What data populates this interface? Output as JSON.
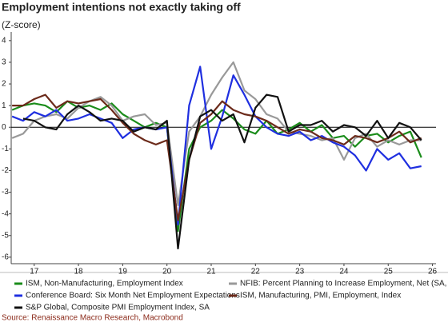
{
  "chart_data": {
    "type": "line",
    "title": "Employment intentions not exactly taking off",
    "subtitle": "(Z-score)",
    "source": "Source: Renaissance Macro Research, Macrobond",
    "x": [
      2016.5,
      2016.75,
      2017,
      2017.25,
      2017.5,
      2017.75,
      2018,
      2018.25,
      2018.5,
      2018.75,
      2019,
      2019.25,
      2019.5,
      2019.75,
      2020,
      2020.25,
      2020.5,
      2020.75,
      2021,
      2021.25,
      2021.5,
      2021.75,
      2022,
      2022.25,
      2022.5,
      2022.75,
      2023,
      2023.25,
      2023.5,
      2023.75,
      2024,
      2024.25,
      2024.5,
      2024.75,
      2025,
      2025.25,
      2025.5,
      2025.75
    ],
    "series": [
      {
        "name": "ISM, Non-Manufacturing, Employment Index",
        "color": "#1a8c1a",
        "values": [
          0.8,
          1.0,
          1.1,
          1.0,
          0.7,
          1.2,
          0.9,
          1.0,
          0.8,
          1.1,
          0.6,
          0.3,
          0.0,
          0.2,
          0.0,
          -4.8,
          -1.0,
          0.0,
          0.3,
          0.8,
          0.4,
          -0.1,
          -0.3,
          0.3,
          -0.3,
          -0.1,
          0.2,
          -0.2,
          0.1,
          -0.5,
          -0.4,
          -0.9,
          -0.4,
          -0.3,
          -0.7,
          -0.4,
          -0.2,
          -1.4
        ]
      },
      {
        "name": "NFIB: Percent Planning to Increase Employment, Net (SA, %)",
        "color": "#999999",
        "values": [
          -0.5,
          -0.3,
          0.3,
          0.5,
          0.6,
          0.4,
          0.9,
          1.2,
          1.4,
          1.0,
          0.3,
          0.5,
          0.6,
          0.1,
          0.2,
          -3.6,
          -0.2,
          0.5,
          1.5,
          2.3,
          3.0,
          1.7,
          1.3,
          0.6,
          0.4,
          -0.2,
          -0.3,
          -0.4,
          -0.6,
          -0.5,
          -1.5,
          -0.5,
          -0.3,
          -0.9,
          -0.6,
          -0.8,
          -0.6,
          -0.6
        ]
      },
      {
        "name": "Conference Board: Six Month Net Employment Expectations",
        "color": "#1f2fe0",
        "values": [
          0.5,
          0.3,
          0.7,
          0.5,
          0.8,
          0.3,
          0.4,
          0.6,
          0.4,
          0.2,
          -0.5,
          -0.1,
          0.0,
          -0.1,
          0.0,
          -4.5,
          1.0,
          2.8,
          -1.0,
          0.5,
          2.4,
          1.5,
          0.5,
          0.0,
          -0.3,
          -0.4,
          -0.2,
          -0.6,
          -0.4,
          -0.7,
          -0.9,
          -1.3,
          -2.0,
          -1.0,
          -1.5,
          -1.2,
          -1.9,
          -1.8
        ]
      },
      {
        "name": "ISM, Manufacturing, PMI, Employment, Index",
        "color": "#6b2a1a",
        "values": [
          1.0,
          1.0,
          1.3,
          1.5,
          0.9,
          1.2,
          1.1,
          1.2,
          1.3,
          0.8,
          0.2,
          -0.3,
          -0.6,
          -0.8,
          -0.6,
          -4.3,
          -1.5,
          0.2,
          0.6,
          1.2,
          0.8,
          0.6,
          0.5,
          0.3,
          0.0,
          -0.3,
          -0.1,
          -0.2,
          -0.5,
          -0.6,
          -0.8,
          -0.4,
          -0.5,
          -0.7,
          -0.5,
          -0.2,
          -0.7,
          -0.5
        ]
      },
      {
        "name": "S&P Global, Composite PMI Employment Index, SA",
        "color": "#111111",
        "values": [
          null,
          0.4,
          0.3,
          0.0,
          -0.1,
          0.6,
          1.0,
          0.7,
          0.3,
          0.4,
          0.3,
          -0.2,
          0.0,
          -0.1,
          0.3,
          -5.6,
          -1.5,
          0.5,
          0.8,
          0.3,
          0.6,
          -0.7,
          0.9,
          1.5,
          1.4,
          -0.2,
          0.1,
          0.1,
          0.3,
          -0.2,
          0.1,
          0.0,
          -0.4,
          0.3,
          -0.5,
          0.2,
          0.0,
          -0.6
        ]
      }
    ],
    "xlim": [
      2016.48,
      2026.08
    ],
    "xticks": [
      {
        "value": 2017,
        "label": "17"
      },
      {
        "value": 2018,
        "label": "18"
      },
      {
        "value": 2019,
        "label": "19"
      },
      {
        "value": 2020,
        "label": "20"
      },
      {
        "value": 2021,
        "label": "21"
      },
      {
        "value": 2022,
        "label": "22"
      },
      {
        "value": 2023,
        "label": "23"
      },
      {
        "value": 2024,
        "label": "24"
      },
      {
        "value": 2025,
        "label": "25"
      },
      {
        "value": 2026,
        "label": "26"
      }
    ],
    "ylim": [
      -6.3,
      4.4
    ],
    "yticks": [
      -6,
      -5,
      -4,
      -3,
      -2,
      -1,
      0,
      1,
      2,
      3,
      4
    ]
  }
}
